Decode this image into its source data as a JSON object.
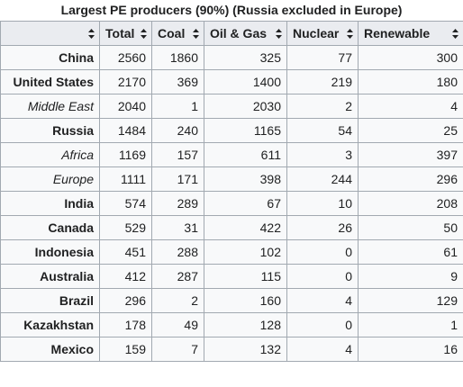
{
  "title": "Largest PE producers (90%) (Russia excluded in Europe)",
  "columns": [
    "Total",
    "Coal",
    "Oil & Gas",
    "Nuclear",
    "Renewable"
  ],
  "sort_icon": "sort-up-down-icon",
  "rows": [
    {
      "name": "China",
      "region": false,
      "values": [
        "2560",
        "1860",
        "325",
        "77",
        "300"
      ]
    },
    {
      "name": "United States",
      "region": false,
      "values": [
        "2170",
        "369",
        "1400",
        "219",
        "180"
      ]
    },
    {
      "name": "Middle East",
      "region": true,
      "values": [
        "2040",
        "1",
        "2030",
        "2",
        "4"
      ]
    },
    {
      "name": "Russia",
      "region": false,
      "values": [
        "1484",
        "240",
        "1165",
        "54",
        "25"
      ]
    },
    {
      "name": "Africa",
      "region": true,
      "values": [
        "1169",
        "157",
        "611",
        "3",
        "397"
      ]
    },
    {
      "name": "Europe",
      "region": true,
      "values": [
        "1111",
        "171",
        "398",
        "244",
        "296"
      ]
    },
    {
      "name": "India",
      "region": false,
      "values": [
        "574",
        "289",
        "67",
        "10",
        "208"
      ]
    },
    {
      "name": "Canada",
      "region": false,
      "values": [
        "529",
        "31",
        "422",
        "26",
        "50"
      ]
    },
    {
      "name": "Indonesia",
      "region": false,
      "values": [
        "451",
        "288",
        "102",
        "0",
        "61"
      ]
    },
    {
      "name": "Australia",
      "region": false,
      "values": [
        "412",
        "287",
        "115",
        "0",
        "9"
      ]
    },
    {
      "name": "Brazil",
      "region": false,
      "values": [
        "296",
        "2",
        "160",
        "4",
        "129"
      ]
    },
    {
      "name": "Kazakhstan",
      "region": false,
      "values": [
        "178",
        "49",
        "128",
        "0",
        "1"
      ]
    },
    {
      "name": "Mexico",
      "region": false,
      "values": [
        "159",
        "7",
        "132",
        "4",
        "16"
      ]
    }
  ]
}
